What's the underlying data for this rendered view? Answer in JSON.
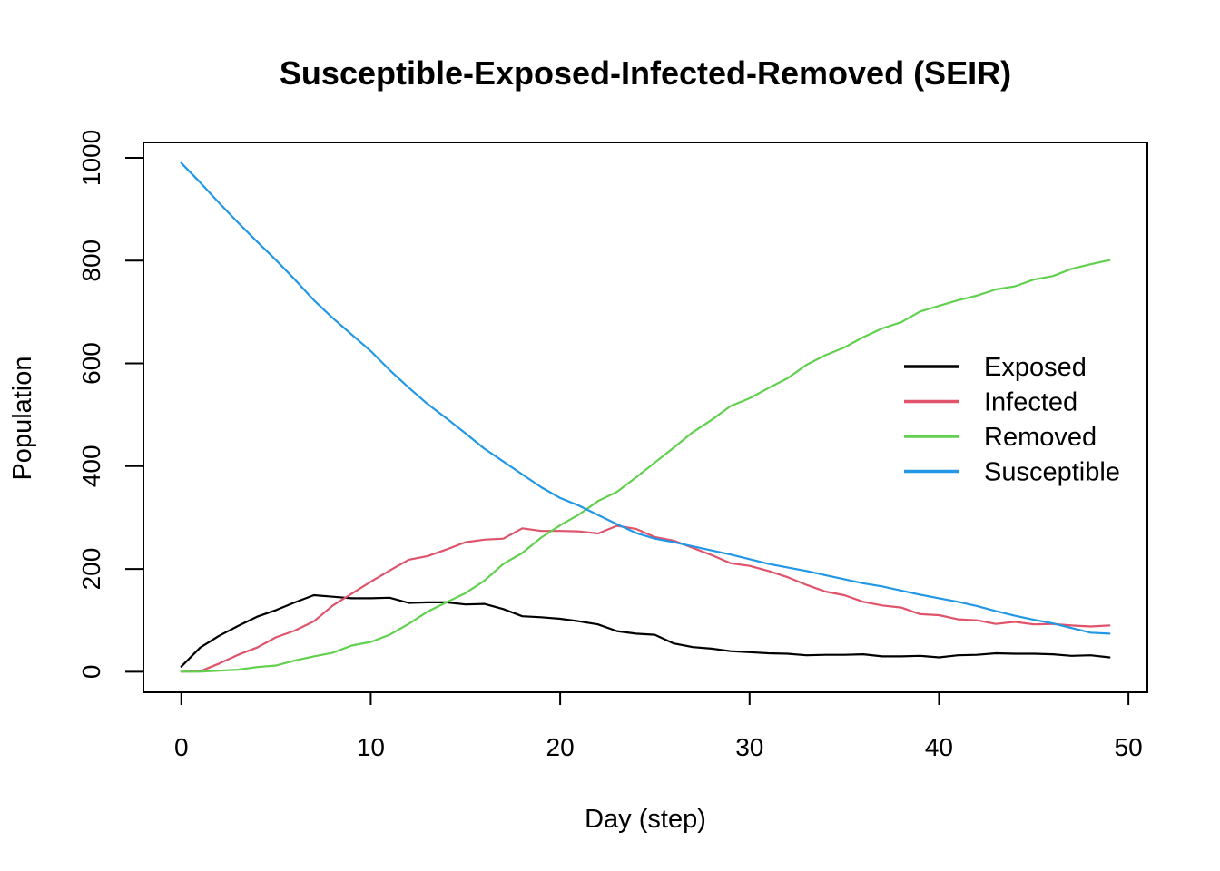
{
  "chart_data": {
    "type": "line",
    "title": "Susceptible-Exposed-Infected-Removed (SEIR)",
    "xlabel": "Day (step)",
    "ylabel": "Population",
    "xlim": [
      -2,
      51
    ],
    "ylim": [
      -40,
      1030
    ],
    "x_ticks": [
      0,
      10,
      20,
      30,
      40,
      50
    ],
    "y_ticks": [
      0,
      200,
      400,
      600,
      800,
      1000
    ],
    "x_tick_labels": [
      "0",
      "10",
      "20",
      "30",
      "40",
      "50"
    ],
    "y_tick_labels": [
      "0",
      "200",
      "400",
      "600",
      "800",
      "1000"
    ],
    "legend_position": "right",
    "x": [
      0,
      1,
      2,
      3,
      4,
      5,
      6,
      7,
      8,
      9,
      10,
      11,
      12,
      13,
      14,
      15,
      16,
      17,
      18,
      19,
      20,
      21,
      22,
      23,
      24,
      25,
      26,
      27,
      28,
      29,
      30,
      31,
      32,
      33,
      34,
      35,
      36,
      37,
      38,
      39,
      40,
      41,
      42,
      43,
      44,
      45,
      46,
      47,
      48,
      49
    ],
    "series": [
      {
        "name": "Exposed",
        "color": "#000000",
        "values": [
          10,
          47,
          70,
          89,
          107,
          120,
          135,
          149,
          146,
          143,
          143,
          144,
          134,
          135,
          135,
          131,
          132,
          122,
          108,
          106,
          103,
          98,
          92,
          79,
          74,
          72,
          55,
          48,
          45,
          40,
          38,
          36,
          35,
          32,
          33,
          33,
          34,
          30,
          30,
          31,
          28,
          32,
          33,
          36,
          35,
          35,
          34,
          31,
          32,
          28
        ]
      },
      {
        "name": "Infected",
        "color": "#DF536B",
        "values": [
          0,
          1,
          16,
          33,
          47,
          67,
          80,
          98,
          129,
          152,
          175,
          197,
          218,
          225,
          238,
          252,
          257,
          259,
          279,
          274,
          274,
          273,
          269,
          284,
          278,
          262,
          255,
          241,
          227,
          211,
          206,
          196,
          184,
          169,
          156,
          149,
          136,
          129,
          125,
          112,
          110,
          102,
          100,
          93,
          97,
          92,
          93,
          90,
          88,
          90
        ]
      },
      {
        "name": "Removed",
        "color": "#61D04F",
        "values": [
          0,
          0,
          2,
          4,
          9,
          12,
          22,
          30,
          37,
          51,
          58,
          72,
          93,
          117,
          135,
          153,
          177,
          210,
          231,
          261,
          285,
          306,
          332,
          350,
          378,
          407,
          436,
          466,
          490,
          517,
          532,
          552,
          571,
          597,
          616,
          631,
          651,
          668,
          680,
          701,
          712,
          723,
          732,
          744,
          750,
          763,
          770,
          784,
          793,
          801
        ]
      },
      {
        "name": "Susceptible",
        "color": "#2297E6",
        "values": [
          990,
          952,
          912,
          874,
          837,
          801,
          763,
          723,
          688,
          656,
          624,
          587,
          553,
          521,
          493,
          464,
          434,
          409,
          384,
          359,
          338,
          323,
          305,
          287,
          270,
          259,
          252,
          244,
          236,
          228,
          219,
          210,
          203,
          196,
          188,
          180,
          172,
          166,
          158,
          150,
          143,
          136,
          128,
          118,
          109,
          101,
          94,
          85,
          76,
          74
        ]
      }
    ]
  }
}
